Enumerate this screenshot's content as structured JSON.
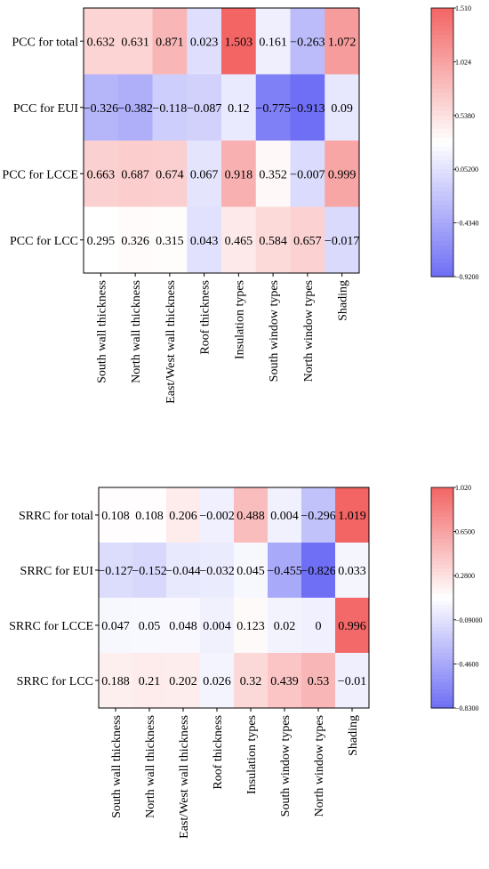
{
  "chart_data": [
    {
      "type": "heatmap",
      "title": "",
      "rows": [
        "PCC for total",
        "PCC for EUI",
        "PCC for LCCE",
        "PCC for LCC"
      ],
      "columns": [
        "South wall thickness",
        "North wall thickness",
        "East/West wall thickness",
        "Roof thickness",
        "Insulation types",
        "South window types",
        "North window types",
        "Shading"
      ],
      "values": [
        [
          0.632,
          0.631,
          0.871,
          0.023,
          1.503,
          0.161,
          -0.263,
          1.072
        ],
        [
          -0.326,
          -0.382,
          -0.118,
          -0.087,
          0.12,
          -0.775,
          -0.913,
          0.09
        ],
        [
          0.663,
          0.687,
          0.674,
          0.067,
          0.918,
          0.352,
          -0.007,
          0.999
        ],
        [
          0.295,
          0.326,
          0.315,
          0.043,
          0.465,
          0.584,
          0.657,
          -0.017
        ]
      ],
      "value_labels": [
        [
          "0.632",
          "0.631",
          "0.871",
          "0.023",
          "1.503",
          "0.161",
          "−0.263",
          "1.072"
        ],
        [
          "−0.326",
          "−0.382",
          "−0.118",
          "−0.087",
          "0.12",
          "−0.775",
          "−0.913",
          "0.09"
        ],
        [
          "0.663",
          "0.687",
          "0.674",
          "0.067",
          "0.918",
          "0.352",
          "−0.007",
          "0.999"
        ],
        [
          "0.295",
          "0.326",
          "0.315",
          "0.043",
          "0.465",
          "0.584",
          "0.657",
          "−0.017"
        ]
      ],
      "colorbar": {
        "min": -0.92,
        "max": 1.51,
        "ticks": [
          1.51,
          1.024,
          0.538,
          0.052,
          -0.434,
          -0.92
        ],
        "tick_labels": [
          "1.510",
          "1.024",
          "0.5380",
          "0.05200",
          "−0.4340",
          "−0.9200"
        ]
      },
      "colormap": {
        "low": "#6e6ef5",
        "mid": "#ffffff",
        "high": "#f36464"
      }
    },
    {
      "type": "heatmap",
      "title": "",
      "rows": [
        "SRRC for total",
        "SRRC for EUI",
        "SRRC for LCCE",
        "SRRC for LCC"
      ],
      "columns": [
        "South wall thickness",
        "North wall thickness",
        "East/West wall thickness",
        "Roof thickness",
        "Insulation types",
        "South window types",
        "North window types",
        "Shading"
      ],
      "values": [
        [
          0.108,
          0.108,
          0.206,
          -0.002,
          0.488,
          0.004,
          -0.296,
          1.019
        ],
        [
          -0.127,
          -0.152,
          -0.044,
          -0.032,
          0.045,
          -0.455,
          -0.826,
          0.033
        ],
        [
          0.047,
          0.05,
          0.048,
          0.004,
          0.123,
          0.02,
          0,
          0.996
        ],
        [
          0.188,
          0.21,
          0.202,
          0.026,
          0.32,
          0.439,
          0.53,
          -0.01
        ]
      ],
      "value_labels": [
        [
          "0.108",
          "0.108",
          "0.206",
          "−0.002",
          "0.488",
          "0.004",
          "−0.296",
          "1.019"
        ],
        [
          "−0.127",
          "−0.152",
          "−0.044",
          "−0.032",
          "0.045",
          "−0.455",
          "−0.826",
          "0.033"
        ],
        [
          "0.047",
          "0.05",
          "0.048",
          "0.004",
          "0.123",
          "0.02",
          "0",
          "0.996"
        ],
        [
          "0.188",
          "0.21",
          "0.202",
          "0.026",
          "0.32",
          "0.439",
          "0.53",
          "−0.01"
        ]
      ],
      "colorbar": {
        "min": -0.83,
        "max": 1.02,
        "ticks": [
          1.02,
          0.65,
          0.28,
          -0.09,
          -0.46,
          -0.83
        ],
        "tick_labels": [
          "1.020",
          "0.6500",
          "0.2800",
          "−0.09000",
          "−0.4600",
          "−0.8300"
        ]
      },
      "colormap": {
        "low": "#6e6ef5",
        "mid": "#ffffff",
        "high": "#f36464"
      }
    }
  ]
}
